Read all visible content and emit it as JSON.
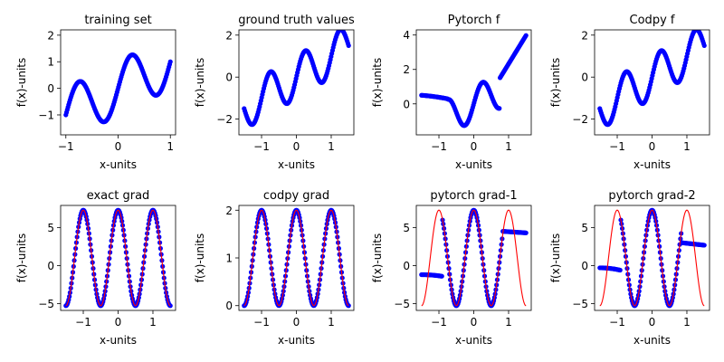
{
  "figure": {
    "background": "#ffffff",
    "marker_color": "#0000ff",
    "line_color": "#ff0000"
  },
  "chart_data": [
    {
      "type": "scatter",
      "title": "training set",
      "xlabel": "x-units",
      "ylabel": "f(x)-units",
      "xlim": [
        -1.1,
        1.1
      ],
      "ylim": [
        -1.75,
        2.2
      ],
      "xticks": [
        -1,
        0,
        1
      ],
      "yticks": [
        -1,
        0,
        1,
        2
      ],
      "x_range": [
        -1,
        1
      ],
      "func": "f",
      "overlay_line": false
    },
    {
      "type": "scatter",
      "title": "ground truth values",
      "xlabel": "x-units",
      "ylabel": "f(x)-units",
      "xlim": [
        -1.65,
        1.65
      ],
      "ylim": [
        -2.75,
        2.25
      ],
      "xticks": [
        -1,
        0,
        1
      ],
      "yticks": [
        -2,
        0,
        2
      ],
      "x_range": [
        -1.5,
        1.5
      ],
      "func": "f",
      "overlay_line": false
    },
    {
      "type": "scatter",
      "title": "Pytorch f",
      "xlabel": "x-units",
      "ylabel": "f(x)-units",
      "xlim": [
        -1.65,
        1.65
      ],
      "ylim": [
        -1.8,
        4.3
      ],
      "xticks": [
        -1,
        0,
        1
      ],
      "yticks": [
        0,
        2,
        4
      ],
      "x_range": [
        -1.5,
        1.5
      ],
      "func": "pytorch_f",
      "overlay_line": false
    },
    {
      "type": "scatter",
      "title": "Codpy f",
      "xlabel": "x-units",
      "ylabel": "f(x)-units",
      "xlim": [
        -1.65,
        1.65
      ],
      "ylim": [
        -2.75,
        2.25
      ],
      "xticks": [
        -1,
        0,
        1
      ],
      "yticks": [
        -2,
        0,
        2
      ],
      "x_range": [
        -1.5,
        1.5
      ],
      "func": "f",
      "overlay_line": false
    },
    {
      "type": "scatter",
      "title": "exact grad",
      "xlabel": "x-units",
      "ylabel": "f(x)-units",
      "xlim": [
        -1.65,
        1.65
      ],
      "ylim": [
        -5.9,
        7.9
      ],
      "xticks": [
        -1,
        0,
        1
      ],
      "yticks": [
        -5,
        0,
        5
      ],
      "x_range": [
        -1.5,
        1.5
      ],
      "func": "grad",
      "overlay_line": true
    },
    {
      "type": "scatter",
      "title": "codpy grad",
      "xlabel": "x-units",
      "ylabel": "f(x)-units",
      "xlim": [
        -1.65,
        1.65
      ],
      "ylim": [
        -0.1,
        2.1
      ],
      "xticks": [
        -1,
        0,
        1
      ],
      "yticks": [
        0,
        1,
        2
      ],
      "x_range": [
        -1.5,
        1.5
      ],
      "func": "codpy_grad",
      "overlay_line": true
    },
    {
      "type": "scatter",
      "title": "pytorch grad-1",
      "xlabel": "x-units",
      "ylabel": "f(x)-units",
      "xlim": [
        -1.65,
        1.65
      ],
      "ylim": [
        -5.9,
        7.9
      ],
      "xticks": [
        -1,
        0,
        1
      ],
      "yticks": [
        -5,
        0,
        5
      ],
      "x_range": [
        -1.5,
        1.5
      ],
      "func": "pt_grad_1",
      "overlay_line": true
    },
    {
      "type": "scatter",
      "title": "pytorch grad-2",
      "xlabel": "x-units",
      "ylabel": "f(x)-units",
      "xlim": [
        -1.65,
        1.65
      ],
      "ylim": [
        -5.9,
        7.9
      ],
      "xticks": [
        -1,
        0,
        1
      ],
      "yticks": [
        -5,
        0,
        5
      ],
      "x_range": [
        -1.5,
        1.5
      ],
      "func": "pt_grad_2",
      "overlay_line": true
    }
  ]
}
